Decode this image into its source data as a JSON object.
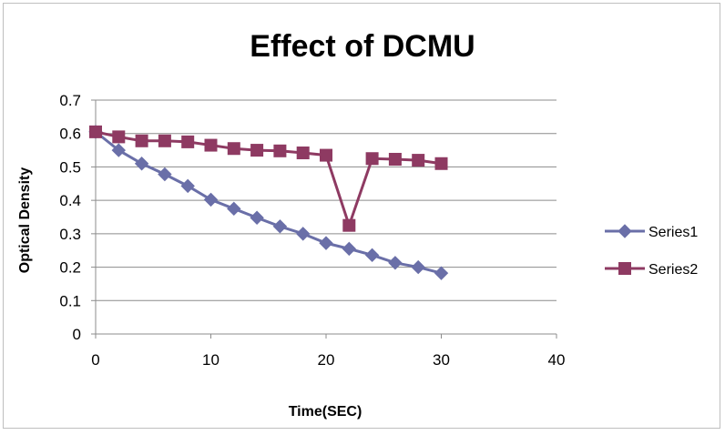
{
  "chart_data": {
    "type": "line",
    "title": "Effect of DCMU",
    "xlabel": "Time(SEC)",
    "ylabel": "Optical Density",
    "xlim": [
      0,
      40
    ],
    "ylim": [
      0,
      0.7
    ],
    "x_ticks": [
      0,
      10,
      20,
      30,
      40
    ],
    "y_ticks": [
      0,
      0.1,
      0.2,
      0.3,
      0.4,
      0.5,
      0.6,
      0.7
    ],
    "grid": "horizontal",
    "legend_position": "right",
    "series": [
      {
        "name": "Series1",
        "color": "#6a6fa8",
        "marker": "diamond",
        "x": [
          0,
          2,
          4,
          6,
          8,
          10,
          12,
          14,
          16,
          18,
          20,
          22,
          24,
          26,
          28,
          30
        ],
        "y": [
          0.605,
          0.55,
          0.51,
          0.478,
          0.443,
          0.402,
          0.375,
          0.348,
          0.322,
          0.3,
          0.272,
          0.255,
          0.236,
          0.213,
          0.2,
          0.182
        ]
      },
      {
        "name": "Series2",
        "color": "#8e3a62",
        "marker": "square",
        "x": [
          0,
          2,
          4,
          6,
          8,
          10,
          12,
          14,
          16,
          18,
          20,
          22,
          24,
          26,
          28,
          30
        ],
        "y": [
          0.605,
          0.59,
          0.578,
          0.578,
          0.575,
          0.565,
          0.555,
          0.55,
          0.548,
          0.542,
          0.535,
          0.325,
          0.525,
          0.523,
          0.52,
          0.51
        ]
      }
    ]
  }
}
